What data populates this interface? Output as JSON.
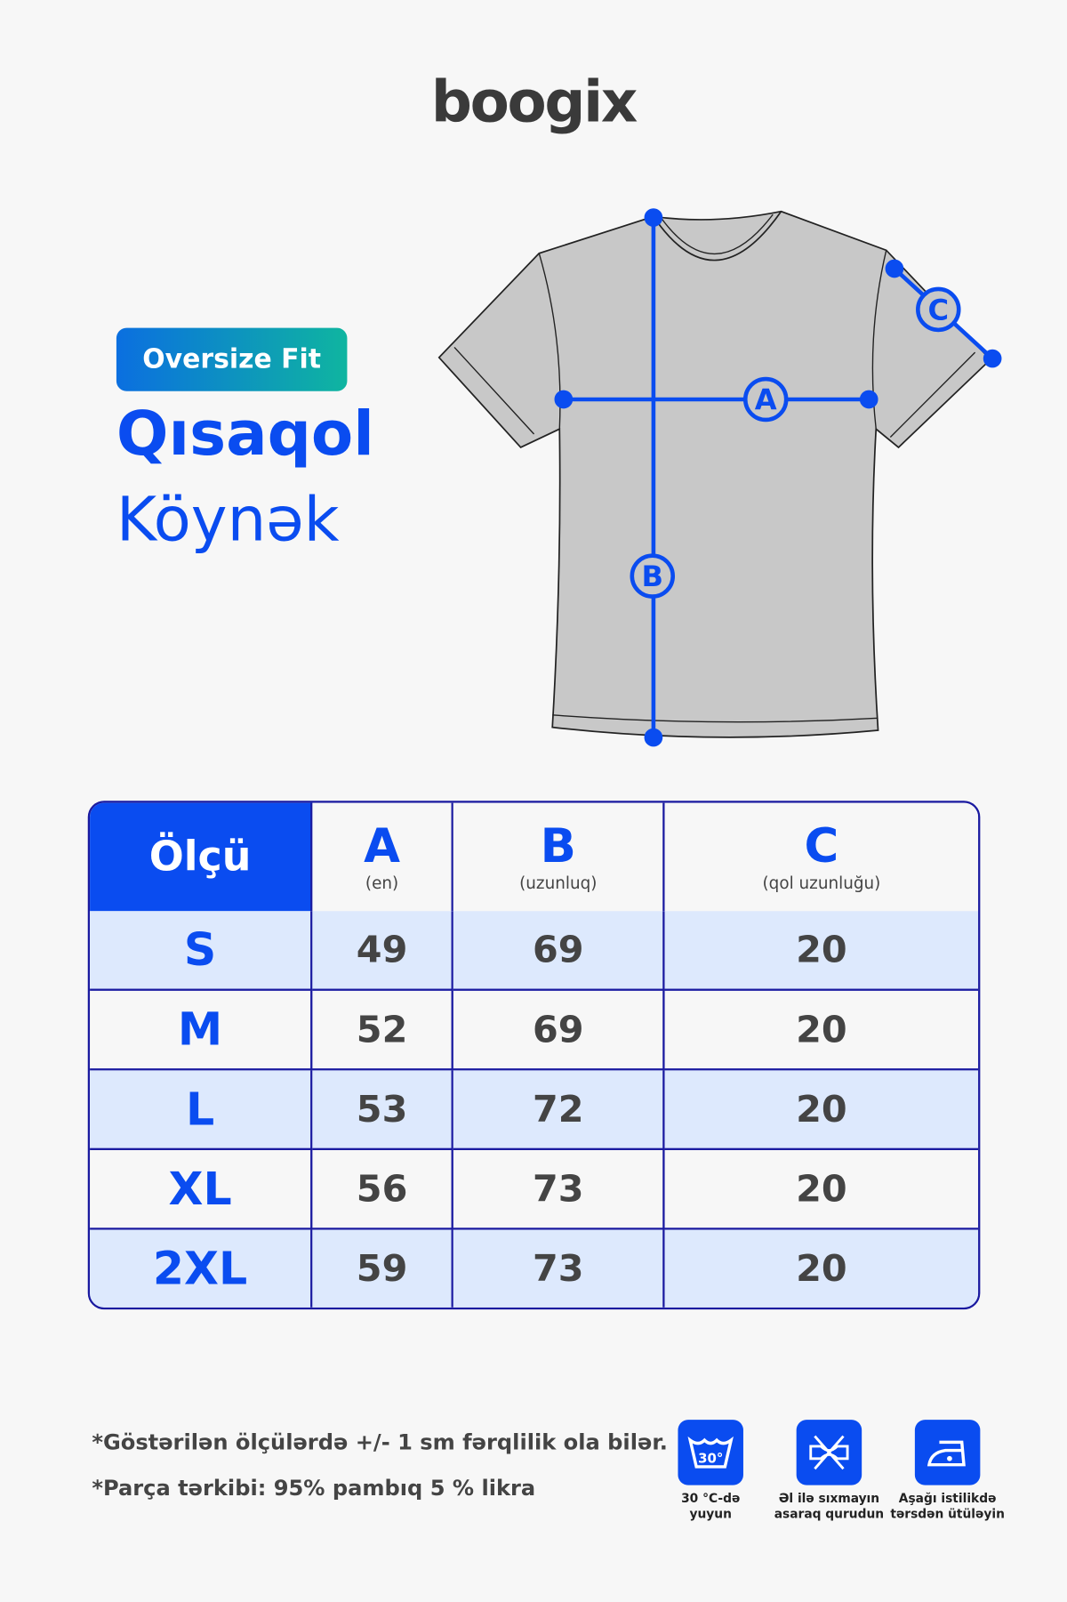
{
  "brand": "boogix",
  "badge": "Oversize Fit",
  "title_line1": "Qısaqol",
  "title_line2": "Köynək",
  "diagram_labels": {
    "a": "A",
    "b": "B",
    "c": "C"
  },
  "table": {
    "header": {
      "size": "Ölçü",
      "cols": [
        {
          "letter": "A",
          "desc": "(en)"
        },
        {
          "letter": "B",
          "desc": "(uzunluq)"
        },
        {
          "letter": "C",
          "desc": "(qol uzunluğu)"
        }
      ]
    },
    "rows": [
      {
        "size": "S",
        "a": "49",
        "b": "69",
        "c": "20"
      },
      {
        "size": "M",
        "a": "52",
        "b": "69",
        "c": "20"
      },
      {
        "size": "L",
        "a": "53",
        "b": "72",
        "c": "20"
      },
      {
        "size": "XL",
        "a": "56",
        "b": "73",
        "c": "20"
      },
      {
        "size": "2XL",
        "a": "59",
        "b": "73",
        "c": "20"
      }
    ]
  },
  "notes": [
    "*Göstərilən ölçülərdə +/- 1 sm fərqlilik ola bilər.",
    "*Parça tərkibi: 95% pambıq 5 % likra"
  ],
  "care": [
    {
      "icon": "wash-30-icon",
      "temp": "30°",
      "label1": "30 °C-də",
      "label2": "yuyun"
    },
    {
      "icon": "do-not-wring-icon",
      "label1": "Əl ilə sıxmayın",
      "label2": "asaraq qurudun"
    },
    {
      "icon": "iron-low-icon",
      "label1": "Aşağı istilikdə",
      "label2": "tərsdən ütüləyin"
    }
  ],
  "colors": {
    "accent": "#0a4cf0",
    "row_alt": "#dde9fd",
    "shirt": "#c8c8c8"
  }
}
